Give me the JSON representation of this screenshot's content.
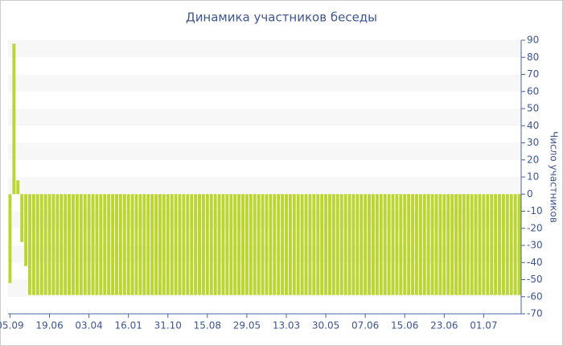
{
  "chart_data": {
    "type": "bar",
    "title": "Динамика участников беседы",
    "y_axis_label": "Число участников",
    "categories": [
      "05.09",
      null,
      null,
      null,
      null,
      null,
      null,
      null,
      null,
      null,
      "19.06",
      null,
      null,
      null,
      null,
      null,
      null,
      null,
      null,
      null,
      "03.04",
      null,
      null,
      null,
      null,
      null,
      null,
      null,
      null,
      null,
      "16.01",
      null,
      null,
      null,
      null,
      null,
      null,
      null,
      null,
      null,
      "31.10",
      null,
      null,
      null,
      null,
      null,
      null,
      null,
      null,
      null,
      "15.08",
      null,
      null,
      null,
      null,
      null,
      null,
      null,
      null,
      null,
      "29.05",
      null,
      null,
      null,
      null,
      null,
      null,
      null,
      null,
      null,
      "13.03",
      null,
      null,
      null,
      null,
      null,
      null,
      null,
      null,
      null,
      "30.05",
      null,
      null,
      null,
      null,
      null,
      null,
      null,
      null,
      null,
      "07.06",
      null,
      null,
      null,
      null,
      null,
      null,
      null,
      null,
      null,
      "15.06",
      null,
      null,
      null,
      null,
      null,
      null,
      null,
      null,
      null,
      "23.06",
      null,
      null,
      null,
      null,
      null,
      null,
      null,
      null,
      null,
      "01.07",
      null,
      null,
      null,
      null,
      null,
      null,
      null,
      null,
      null
    ],
    "values": [
      -52,
      88,
      8,
      -28,
      -42,
      -59,
      -59,
      -59,
      -59,
      -59,
      -59,
      -59,
      -59,
      -59,
      -59,
      -59,
      -59,
      -59,
      -59,
      -59,
      -59,
      -59,
      -59,
      -59,
      -59,
      -59,
      -59,
      -59,
      -59,
      -59,
      -59,
      -59,
      -59,
      -59,
      -59,
      -59,
      -59,
      -59,
      -59,
      -59,
      -59,
      -59,
      -59,
      -59,
      -59,
      -59,
      -59,
      -59,
      -59,
      -59,
      -59,
      -59,
      -59,
      -59,
      -59,
      -59,
      -59,
      -59,
      -59,
      -59,
      -59,
      -59,
      -59,
      -59,
      -59,
      -59,
      -59,
      -59,
      -59,
      -59,
      -59,
      -59,
      -59,
      -59,
      -59,
      -59,
      -59,
      -59,
      -59,
      -59,
      -59,
      -59,
      -59,
      -59,
      -59,
      -59,
      -59,
      -59,
      -59,
      -59,
      -59,
      -59,
      -59,
      -59,
      -59,
      -59,
      -59,
      -59,
      -59,
      -59,
      -59,
      -59,
      -59,
      -59,
      -59,
      -59,
      -59,
      -59,
      -59,
      -59,
      -59,
      -59,
      -59,
      -59,
      -59,
      -59,
      -59,
      -59,
      -59,
      -59,
      -59,
      -59,
      -59,
      -59,
      -59,
      -59,
      -59,
      -59,
      -59,
      -59
    ],
    "color": "#bcd631",
    "ylim": [
      -70,
      90
    ],
    "yticks": [
      -70,
      -60,
      -50,
      -40,
      -30,
      -20,
      -10,
      0,
      10,
      20,
      30,
      40,
      50,
      60,
      70,
      80,
      90
    ],
    "y_axis_side": "right",
    "grid": "bands"
  }
}
